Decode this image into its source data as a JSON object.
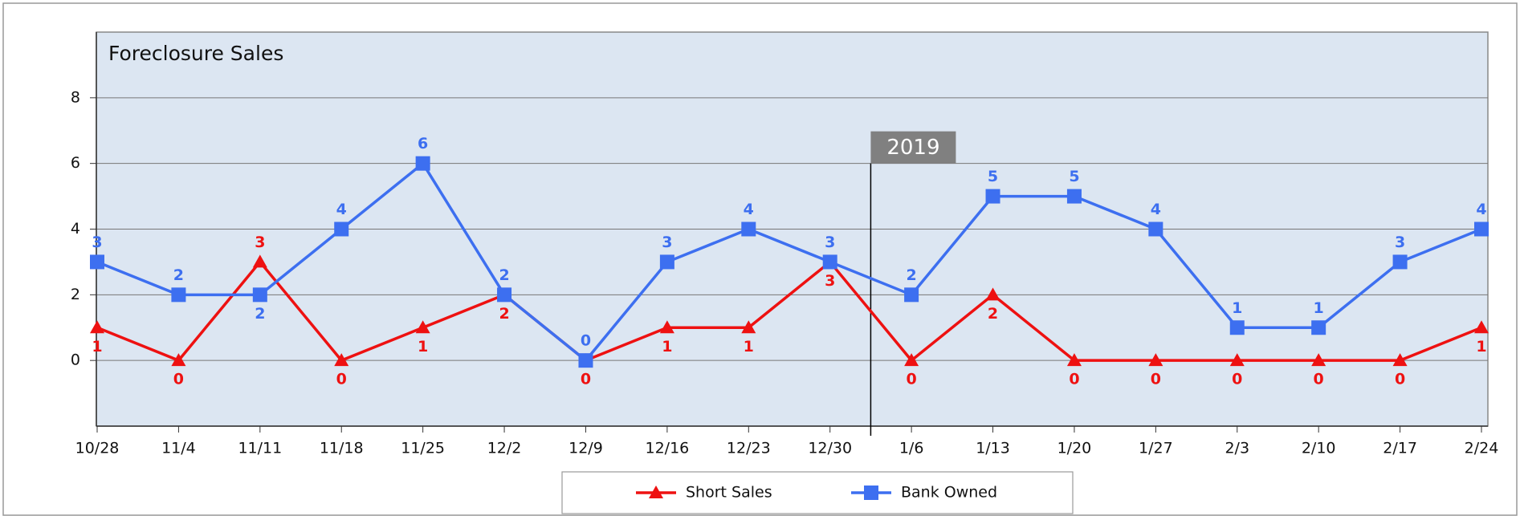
{
  "chart_data": {
    "type": "line",
    "title": "Foreclosure Sales",
    "categories": [
      "10/28",
      "11/4",
      "11/11",
      "11/18",
      "11/25",
      "12/2",
      "12/9",
      "12/16",
      "12/23",
      "12/30",
      "1/6",
      "1/13",
      "1/20",
      "1/27",
      "2/3",
      "2/10",
      "2/17",
      "2/24"
    ],
    "series": [
      {
        "name": "Short Sales",
        "color": "#ee1111",
        "marker": "triangle",
        "values": [
          1,
          0,
          3,
          0,
          1,
          2,
          0,
          1,
          1,
          3,
          0,
          2,
          0,
          0,
          0,
          0,
          0,
          1
        ]
      },
      {
        "name": "Bank Owned",
        "color": "#3d6ff0",
        "marker": "square",
        "values": [
          3,
          2,
          2,
          4,
          6,
          2,
          0,
          3,
          4,
          3,
          2,
          5,
          5,
          4,
          1,
          1,
          3,
          4
        ]
      }
    ],
    "ylim": [
      -2,
      10
    ],
    "yticks": [
      0,
      2,
      4,
      6,
      8
    ],
    "grid": true,
    "legend": "bottom",
    "annotations": [
      {
        "text": "2019"
      }
    ]
  }
}
